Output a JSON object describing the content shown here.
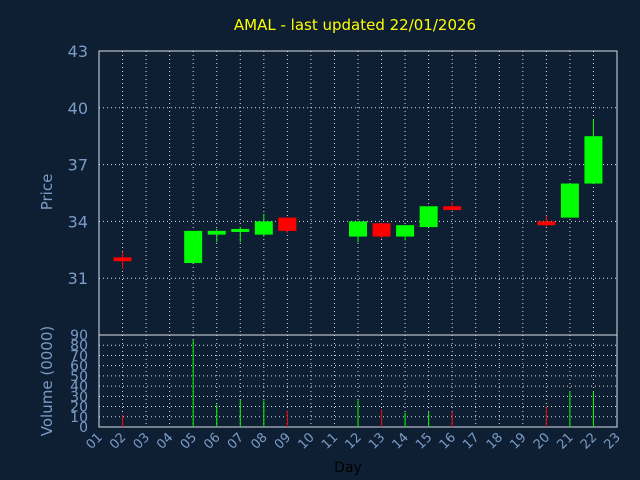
{
  "chart_data": {
    "type": "candlestick",
    "title": "AMAL - last updated 22/01/2026",
    "ylabel": "Price",
    "volume_label": "Volume (0000)",
    "xlabel": "Day",
    "colors": {
      "up": "#00ff00",
      "down": "#ff0000",
      "title": "#ffff00",
      "axis": "#7a9cc6",
      "background": "#0f1f33"
    },
    "price_axis": {
      "min": 28,
      "max": 43,
      "ticks": [
        31,
        34,
        37,
        40,
        43
      ],
      "tick_labels": [
        "31",
        "34",
        "37",
        "40",
        "43"
      ]
    },
    "volume_axis": {
      "min": 0,
      "max": 90,
      "ticks": [
        0,
        10,
        20,
        30,
        40,
        50,
        60,
        70,
        80,
        90
      ],
      "tick_labels": [
        "0",
        "10",
        "20",
        "30",
        "40",
        "50",
        "60",
        "70",
        "80",
        "90"
      ]
    },
    "x_ticks": [
      "01",
      "02",
      "03",
      "04",
      "05",
      "06",
      "07",
      "08",
      "09",
      "10",
      "11",
      "12",
      "13",
      "14",
      "15",
      "16",
      "17",
      "18",
      "19",
      "20",
      "21",
      "22",
      "23"
    ],
    "grid": true,
    "candles": [
      {
        "day": 2,
        "open": 32.1,
        "close": 31.9,
        "high": 32.4,
        "low": 31.5,
        "volume": 12
      },
      {
        "day": 5,
        "open": 31.8,
        "close": 33.5,
        "high": 33.5,
        "low": 31.8,
        "volume": 85
      },
      {
        "day": 6,
        "open": 33.3,
        "close": 33.5,
        "high": 33.6,
        "low": 32.9,
        "volume": 22
      },
      {
        "day": 7,
        "open": 33.5,
        "close": 33.6,
        "high": 33.7,
        "low": 32.9,
        "volume": 27
      },
      {
        "day": 8,
        "open": 33.3,
        "close": 34.0,
        "high": 34.4,
        "low": 33.2,
        "volume": 26
      },
      {
        "day": 9,
        "open": 34.2,
        "close": 33.5,
        "high": 34.2,
        "low": 33.4,
        "volume": 16
      },
      {
        "day": 12,
        "open": 33.2,
        "close": 34.0,
        "high": 34.0,
        "low": 32.9,
        "volume": 26
      },
      {
        "day": 13,
        "open": 33.9,
        "close": 33.2,
        "high": 33.9,
        "low": 33.1,
        "volume": 17
      },
      {
        "day": 14,
        "open": 33.2,
        "close": 33.8,
        "high": 33.8,
        "low": 33.0,
        "volume": 14
      },
      {
        "day": 15,
        "open": 33.7,
        "close": 34.8,
        "high": 34.8,
        "low": 33.7,
        "volume": 15
      },
      {
        "day": 16,
        "open": 34.8,
        "close": 34.6,
        "high": 35.0,
        "low": 34.6,
        "volume": 15
      },
      {
        "day": 20,
        "open": 34.0,
        "close": 33.8,
        "high": 34.3,
        "low": 33.7,
        "volume": 20
      },
      {
        "day": 21,
        "open": 34.2,
        "close": 36.0,
        "high": 36.0,
        "low": 34.2,
        "volume": 35
      },
      {
        "day": 22,
        "open": 36.0,
        "close": 38.5,
        "high": 39.4,
        "low": 36.0,
        "volume": 35
      }
    ]
  }
}
